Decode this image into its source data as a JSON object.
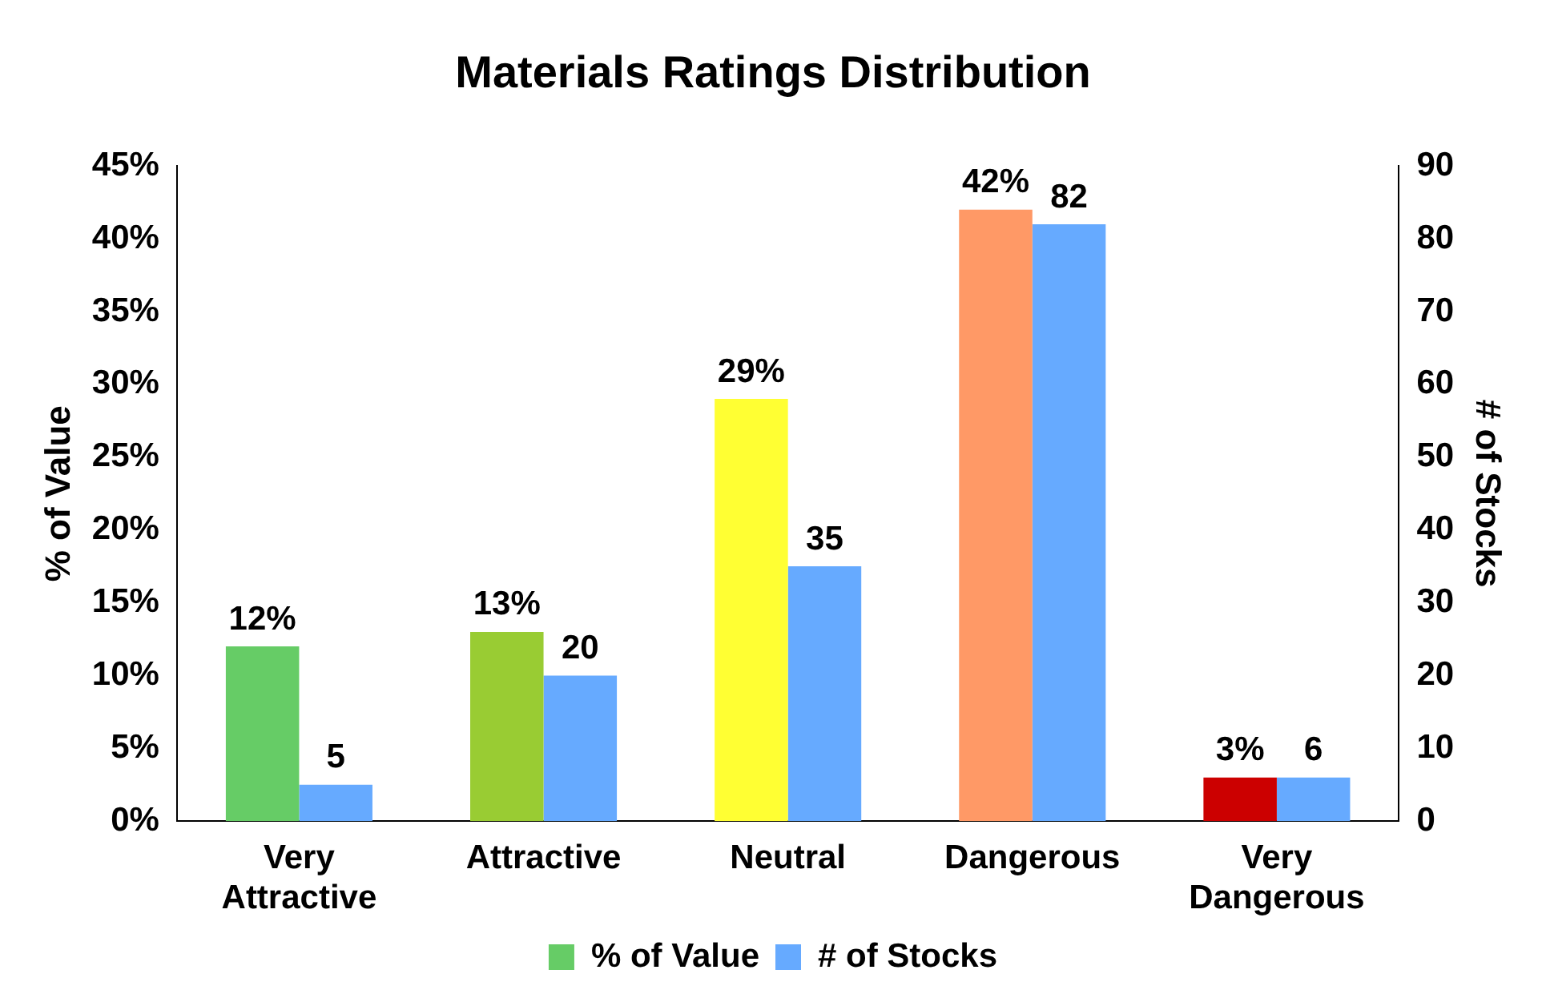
{
  "chart_data": {
    "type": "bar",
    "title": "Materials Ratings Distribution",
    "ylabel": "% of Value",
    "y2label": "# of Stocks",
    "categories": [
      "Very Attractive",
      "Attractive",
      "Neutral",
      "Dangerous",
      "Very Dangerous"
    ],
    "series": [
      {
        "name": "% of Value",
        "color": "#66cc66",
        "colors": [
          "#66cc66",
          "#99cc33",
          "#ffff33",
          "#ff9966",
          "#cc0000"
        ],
        "values": [
          12,
          13,
          29,
          42,
          3
        ],
        "value_labels": [
          "12%",
          "13%",
          "29%",
          "42%",
          "3%"
        ]
      },
      {
        "name": "# of Stocks",
        "color": "#66aaff",
        "axis": "y2",
        "values": [
          5,
          20,
          35,
          82,
          6
        ],
        "value_labels": [
          "5",
          "20",
          "35",
          "82",
          "6"
        ]
      }
    ],
    "ylim": [
      0,
      45
    ],
    "yticks": [
      {
        "value": 0,
        "label": "0%"
      },
      {
        "value": 5,
        "label": "5%"
      },
      {
        "value": 10,
        "label": "10%"
      },
      {
        "value": 15,
        "label": "15%"
      },
      {
        "value": 20,
        "label": "20%"
      },
      {
        "value": 25,
        "label": "25%"
      },
      {
        "value": 30,
        "label": "30%"
      },
      {
        "value": 35,
        "label": "35%"
      },
      {
        "value": 40,
        "label": "40%"
      },
      {
        "value": 45,
        "label": "45%"
      }
    ],
    "y2lim": [
      0,
      90
    ],
    "y2ticks": [
      0,
      10,
      20,
      30,
      40,
      50,
      60,
      70,
      80,
      90
    ],
    "grid": false,
    "legend": "bottom"
  }
}
